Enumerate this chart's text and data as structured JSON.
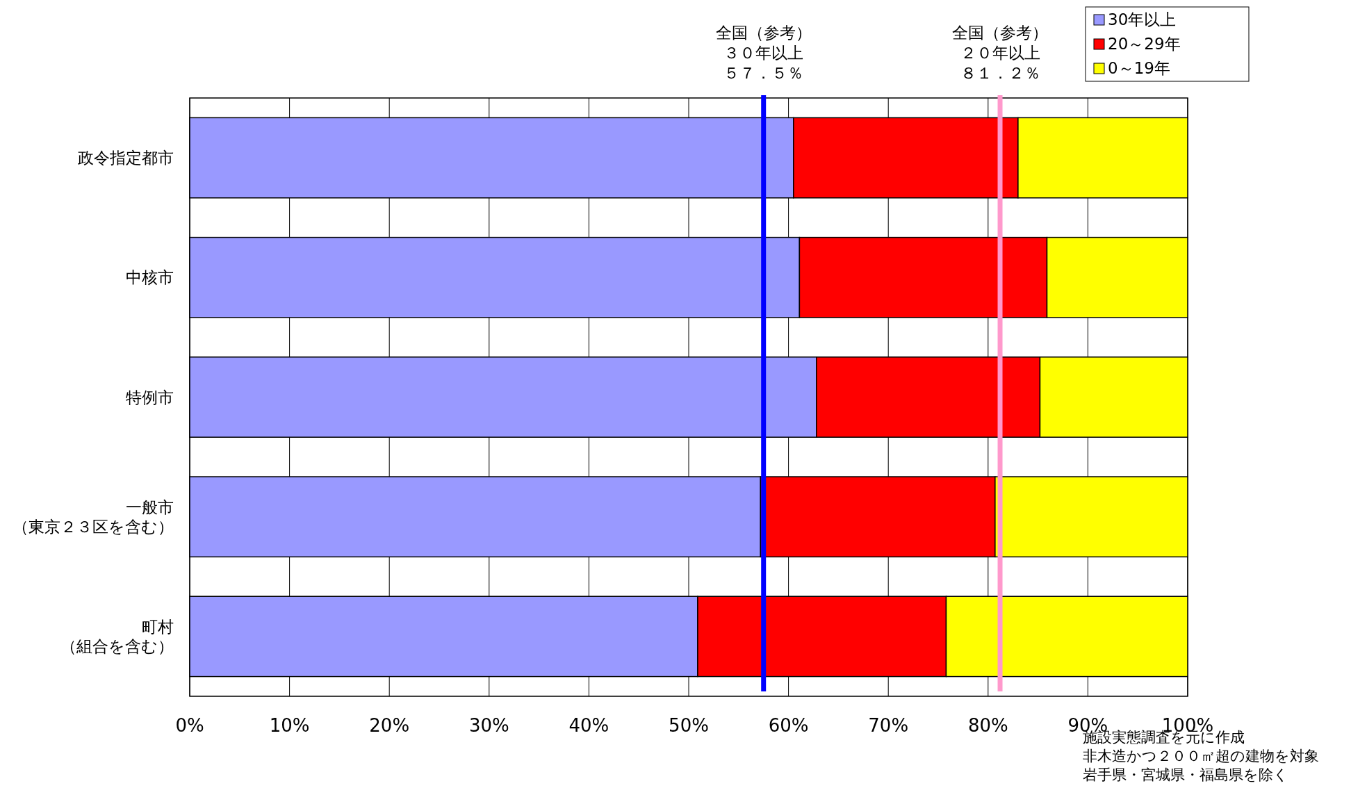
{
  "chart_data": {
    "type": "bar",
    "orientation": "horizontal",
    "stacked": true,
    "categories": [
      "政令指定都市",
      "中核市",
      "特例市",
      "一般市（東京２３区を含む）",
      "町村（組合を含む）"
    ],
    "series": [
      {
        "name": "30年以上",
        "color": "#9999ff",
        "values": [
          60.5,
          61.1,
          62.8,
          57.2,
          50.9
        ]
      },
      {
        "name": "20～29年",
        "color": "#ff0000",
        "values": [
          22.5,
          24.8,
          22.4,
          23.5,
          24.9
        ]
      },
      {
        "name": "0～19年",
        "color": "#ffff00",
        "values": [
          17.0,
          14.1,
          14.8,
          19.3,
          24.2
        ]
      }
    ],
    "xlim": [
      0,
      100
    ],
    "xticks": [
      {
        "value": 0,
        "label": "0%"
      },
      {
        "value": 10,
        "label": "10%"
      },
      {
        "value": 20,
        "label": "20%"
      },
      {
        "value": 30,
        "label": "30%"
      },
      {
        "value": 40,
        "label": "40%"
      },
      {
        "value": 50,
        "label": "50%"
      },
      {
        "value": 60,
        "label": "60%"
      },
      {
        "value": 70,
        "label": "70%"
      },
      {
        "value": 80,
        "label": "80%"
      },
      {
        "value": 90,
        "label": "90%"
      },
      {
        "value": 100,
        "label": "100%"
      }
    ],
    "grid": "x",
    "legend": "top right",
    "ref_lines": [
      {
        "axis": "x",
        "value": 57.5,
        "label": "全国（参考）３０年以上５７．５％",
        "color": "#0000ff"
      },
      {
        "axis": "x",
        "value": 81.2,
        "label": "全国（参考）２０年以上８１．２％",
        "color": "#ff99cc"
      }
    ],
    "annotations": [
      "施設実態調査を元に作成",
      "非木造かつ２００㎡超の建物を対象",
      "岩手県・宮城県・福島県を除く"
    ]
  }
}
